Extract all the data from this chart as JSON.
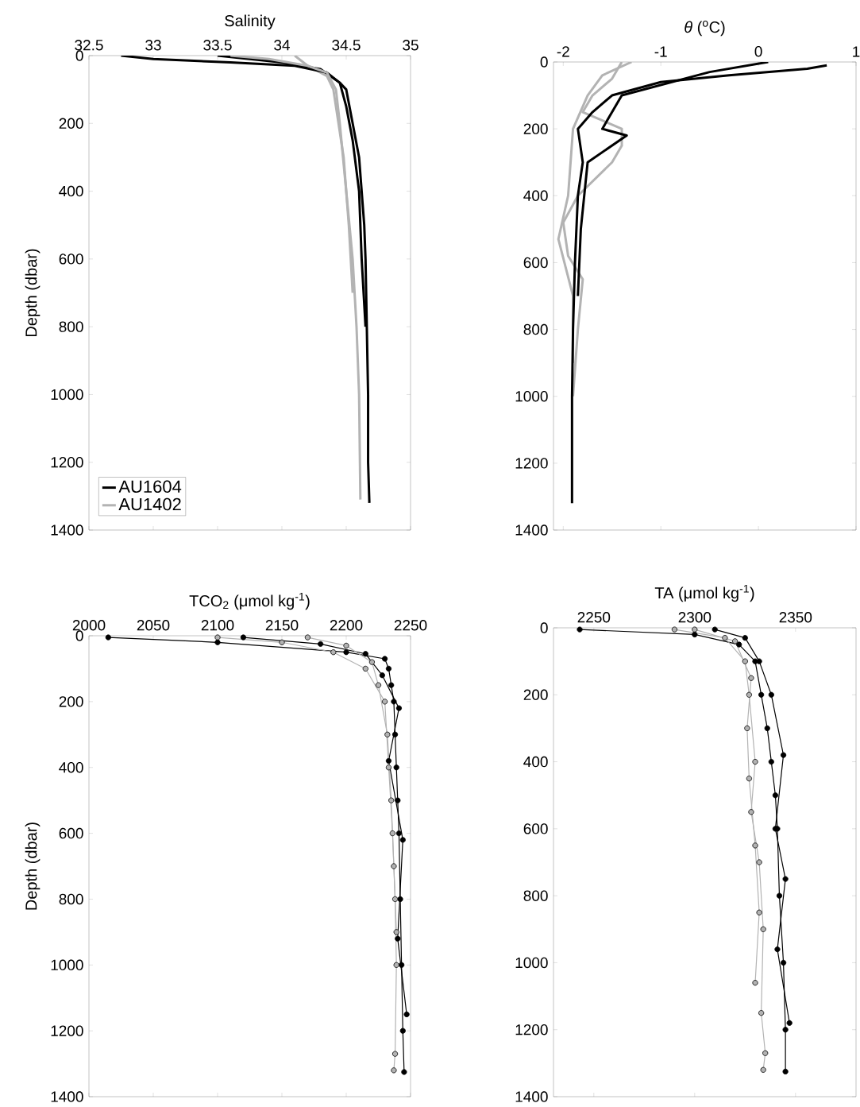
{
  "chart_data": [
    {
      "type": "line",
      "xlabel": "Salinity",
      "ylabel": "Depth (dbar)",
      "xlim": [
        32.5,
        35
      ],
      "ylim": [
        1400,
        0
      ],
      "xticks": [
        32.5,
        33,
        33.5,
        34,
        34.5,
        35
      ],
      "yticks": [
        0,
        200,
        400,
        600,
        800,
        1000,
        1200,
        1400
      ],
      "legend": "bottom left",
      "series": [
        {
          "name": "AU1604",
          "color": "#000000",
          "x": [
            32.75,
            33.0,
            33.6,
            34.1,
            34.35,
            34.45,
            34.5,
            34.55,
            34.6,
            34.62,
            34.64,
            34.65,
            34.66,
            34.67,
            34.67,
            34.68
          ],
          "values": [
            0,
            10,
            20,
            30,
            50,
            80,
            100,
            200,
            300,
            400,
            500,
            600,
            800,
            1000,
            1200,
            1320
          ]
        },
        {
          "name": "AU1402",
          "color": "#b3b3b3",
          "x": [
            33.6,
            33.9,
            34.2,
            34.35,
            34.42,
            34.45,
            34.5,
            34.55,
            34.58,
            34.6,
            34.61
          ],
          "values": [
            0,
            10,
            30,
            50,
            100,
            200,
            400,
            600,
            800,
            1000,
            1310
          ]
        },
        {
          "color": "#000000",
          "x": [
            33.5,
            34.0,
            34.3,
            34.45,
            34.5,
            34.55,
            34.6,
            34.62,
            34.65
          ],
          "values": [
            0,
            20,
            40,
            80,
            150,
            250,
            400,
            600,
            800
          ]
        },
        {
          "color": "#b3b3b3",
          "x": [
            34.1,
            34.2,
            34.35,
            34.4,
            34.48,
            34.52,
            34.55
          ],
          "values": [
            0,
            30,
            60,
            100,
            300,
            500,
            700
          ]
        }
      ]
    },
    {
      "type": "line",
      "xlabel": "*θ* ($^{o}$C)",
      "xlim": [
        -2.1,
        1
      ],
      "ylim": [
        1400,
        0
      ],
      "xticks": [
        -2,
        -1,
        0,
        1
      ],
      "yticks": [
        0,
        200,
        400,
        600,
        800,
        1000,
        1200,
        1400
      ],
      "series": [
        {
          "color": "#b3b3b3",
          "x": [
            -1.4,
            -1.5,
            -1.7,
            -1.8,
            -1.4,
            -1.4,
            -1.5,
            -1.85,
            -2.0,
            -1.95,
            -1.8,
            -1.85,
            -1.9
          ],
          "values": [
            0,
            50,
            100,
            150,
            200,
            250,
            300,
            400,
            480,
            580,
            650,
            800,
            1000
          ]
        },
        {
          "color": "#b3b3b3",
          "x": [
            -1.3,
            -1.6,
            -1.75,
            -1.9,
            -1.95,
            -2.05,
            -1.9,
            -1.9
          ],
          "values": [
            0,
            40,
            100,
            200,
            400,
            530,
            700,
            900
          ]
        },
        {
          "color": "#000000",
          "x": [
            0.7,
            0.5,
            -0.3,
            -1.0,
            -1.5,
            -1.7,
            -1.85,
            -1.8,
            -1.85,
            -1.88,
            -1.9,
            -1.91,
            -1.91
          ],
          "values": [
            10,
            20,
            40,
            60,
            100,
            150,
            200,
            300,
            400,
            600,
            800,
            1000,
            1320
          ]
        },
        {
          "color": "#000000",
          "x": [
            0.1,
            -0.5,
            -1.4,
            -1.6,
            -1.35,
            -1.75,
            -1.82,
            -1.85
          ],
          "values": [
            0,
            30,
            100,
            200,
            220,
            300,
            500,
            700
          ]
        }
      ]
    },
    {
      "type": "line",
      "xlabel": "TCO$_{2}$ (μmol kg$^{-1}$)",
      "ylabel": "Depth (dbar)",
      "xlim": [
        2000,
        2250
      ],
      "ylim": [
        1400,
        0
      ],
      "xticks": [
        2000,
        2050,
        2100,
        2150,
        2200,
        2250
      ],
      "yticks": [
        0,
        200,
        400,
        600,
        800,
        1000,
        1200,
        1400
      ],
      "marker": "circle",
      "series": [
        {
          "color": "#000000",
          "x": [
            2015,
            2100,
            2200,
            2230,
            2233,
            2235,
            2237,
            2238,
            2239,
            2240,
            2241,
            2242,
            2243,
            2244,
            2245
          ],
          "values": [
            5,
            20,
            50,
            70,
            100,
            150,
            200,
            300,
            400,
            500,
            600,
            800,
            1000,
            1200,
            1325
          ]
        },
        {
          "color": "#000000",
          "x": [
            2120,
            2180,
            2215,
            2228,
            2241,
            2233,
            2244,
            2240,
            2247
          ],
          "values": [
            5,
            25,
            55,
            120,
            220,
            380,
            620,
            920,
            1150
          ]
        },
        {
          "color": "#b3b3b3",
          "x": [
            2100,
            2150,
            2190,
            2215,
            2230,
            2233,
            2236,
            2238,
            2239,
            2238,
            2237
          ],
          "values": [
            5,
            20,
            50,
            100,
            200,
            400,
            600,
            800,
            1000,
            1270,
            1320
          ]
        },
        {
          "color": "#b3b3b3",
          "x": [
            2170,
            2200,
            2220,
            2225,
            2232,
            2235,
            2237,
            2239
          ],
          "values": [
            5,
            30,
            80,
            150,
            300,
            500,
            700,
            900
          ]
        }
      ]
    },
    {
      "type": "line",
      "xlabel": "TA (μmol kg$^{-1}$)",
      "xlim": [
        2230,
        2380
      ],
      "ylim": [
        1400,
        0
      ],
      "xticks": [
        2250,
        2300,
        2350
      ],
      "yticks": [
        0,
        200,
        400,
        600,
        800,
        1000,
        1200,
        1400
      ],
      "marker": "circle",
      "series": [
        {
          "color": "#000000",
          "x": [
            2243,
            2300,
            2322,
            2330,
            2333,
            2336,
            2338,
            2340,
            2341,
            2342,
            2344,
            2345,
            2345
          ],
          "values": [
            5,
            20,
            50,
            100,
            200,
            300,
            400,
            500,
            600,
            800,
            1000,
            1200,
            1325
          ]
        },
        {
          "color": "#000000",
          "x": [
            2310,
            2325,
            2332,
            2338,
            2344,
            2340,
            2345,
            2341,
            2347
          ],
          "values": [
            5,
            30,
            100,
            200,
            380,
            600,
            750,
            960,
            1180
          ]
        },
        {
          "color": "#b3b3b3",
          "x": [
            2290,
            2315,
            2325,
            2327,
            2330,
            2328,
            2332,
            2334,
            2333,
            2335,
            2334
          ],
          "values": [
            5,
            30,
            100,
            200,
            400,
            550,
            700,
            900,
            1150,
            1270,
            1320
          ]
        },
        {
          "color": "#b3b3b3",
          "x": [
            2300,
            2320,
            2328,
            2326,
            2327,
            2330,
            2332,
            2330
          ],
          "values": [
            5,
            40,
            150,
            300,
            450,
            650,
            850,
            1060
          ]
        }
      ]
    }
  ]
}
